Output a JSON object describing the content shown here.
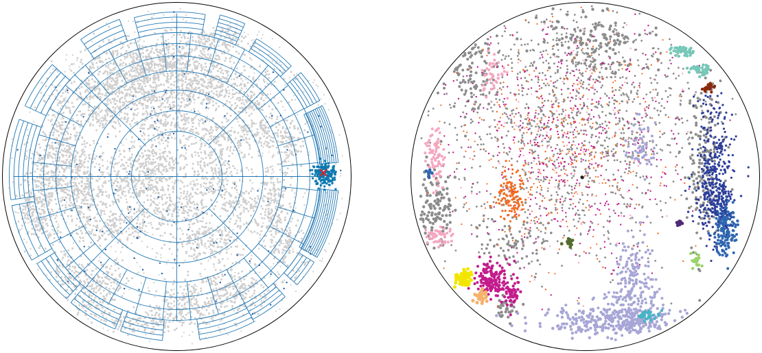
{
  "figure": {
    "panels": [
      {
        "id": "left",
        "kind": "hierarchical-polar-grid-over-point-cloud",
        "background_point_color": "#cfcfcf",
        "grid_color": "#1f77b4",
        "sample_point_color": "#1f5fa8",
        "query_cluster_color": "#0a78b0",
        "query_marker": "x",
        "query_marker_color": "#d62728"
      },
      {
        "id": "right",
        "kind": "categorical-point-cloud",
        "palette": [
          "#8c8c8c",
          "#2c3e9a",
          "#a7a6d6",
          "#c31b8c",
          "#f26b21",
          "#f5a6c0",
          "#76c8b8",
          "#8b2b0b",
          "#f2e600",
          "#f5b26b",
          "#2f66b0",
          "#41b6c4",
          "#556b2f",
          "#222222",
          "#9ad36a",
          "#4f2a7a"
        ]
      }
    ]
  }
}
